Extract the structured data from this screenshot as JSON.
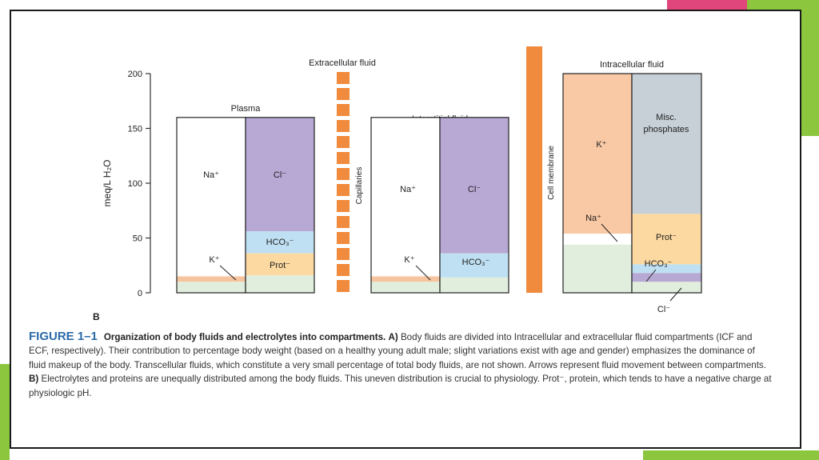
{
  "colors": {
    "na": "#ffffff",
    "cl": "#b8a8d4",
    "hco3": "#bfe0f2",
    "prot": "#fcd9a0",
    "k_plasma": "#f7c4a0",
    "base": "#e1eedd",
    "k_icf": "#f9c8a4",
    "misc": "#c6d0d6",
    "membrane": "#f08a3c",
    "frame_accent_green": "#8cc63f",
    "frame_accent_pink": "#e0457b"
  },
  "chart_data": {
    "type": "bar",
    "panel_label": "B",
    "ylabel": "meq/L H₂O",
    "ylim": [
      0,
      200
    ],
    "yticks": [
      "0",
      "50",
      "100",
      "150",
      "200"
    ],
    "labels": {
      "extracellular": "Extracellular fluid",
      "intracellular": "Intracellular fluid",
      "plasma": "Plasma",
      "interstitial": "Interstitial fluid",
      "capillaries": "Capillaries",
      "cell_membrane": "Cell membrane"
    },
    "compartments": [
      {
        "name": "Plasma",
        "cations": [
          {
            "ion": "Na⁺",
            "label": "Na⁺",
            "value": 145
          },
          {
            "ion": "K⁺",
            "label": "K⁺",
            "value": 5
          },
          {
            "ion": "other",
            "label": "",
            "value": 10
          }
        ],
        "anions": [
          {
            "ion": "Cl⁻",
            "label": "Cl⁻",
            "value": 104
          },
          {
            "ion": "HCO₃⁻",
            "label": "HCO₃⁻",
            "value": 20
          },
          {
            "ion": "Prot⁻",
            "label": "Prot⁻",
            "value": 20
          },
          {
            "ion": "other",
            "label": "",
            "value": 16
          }
        ]
      },
      {
        "name": "Interstitial fluid",
        "cations": [
          {
            "ion": "Na⁺",
            "label": "Na⁺",
            "value": 145
          },
          {
            "ion": "K⁺",
            "label": "K⁺",
            "value": 5
          },
          {
            "ion": "other",
            "label": "",
            "value": 10
          }
        ],
        "anions": [
          {
            "ion": "Cl⁻",
            "label": "Cl⁻",
            "value": 124
          },
          {
            "ion": "HCO₃⁻",
            "label": "HCO₃⁻",
            "value": 22
          },
          {
            "ion": "other",
            "label": "",
            "value": 14
          }
        ]
      },
      {
        "name": "Intracellular fluid",
        "cations": [
          {
            "ion": "K⁺",
            "label": "K⁺",
            "value": 146
          },
          {
            "ion": "Na⁺",
            "label": "Na⁺",
            "value": 10
          },
          {
            "ion": "other",
            "label": "",
            "value": 44
          }
        ],
        "anions": [
          {
            "ion": "Misc. phosphates",
            "label": "Misc. phosphates",
            "value": 128
          },
          {
            "ion": "Prot⁻",
            "label": "Prot⁻",
            "value": 46
          },
          {
            "ion": "HCO₃⁻",
            "label": "HCO₃⁻",
            "value": 8
          },
          {
            "ion": "Cl⁻",
            "label": "Cl⁻",
            "value": 8
          },
          {
            "ion": "other",
            "label": "",
            "value": 10
          }
        ]
      }
    ]
  },
  "caption": {
    "fig_num": "FIGURE 1–1",
    "title": "Organization of body fluids and electrolytes into compartments.",
    "part_a_label": "A)",
    "part_a_text": "Body fluids are divided into Intracellular and extracellular fluid compartments (ICF and ECF, respectively). Their contribution to percentage body weight (based on a healthy young adult male; slight variations exist with age and gender) emphasizes the dominance of fluid makeup of the body. Transcellular fluids, which constitute a very small percentage of total body fluids, are not shown. Arrows represent fluid movement between compartments.",
    "part_b_label": "B)",
    "part_b_text": "Electrolytes and proteins are unequally distributed among the body fluids. This uneven distribution is crucial to physiology. Prot⁻, protein, which tends to have a negative charge at physiologic pH."
  }
}
